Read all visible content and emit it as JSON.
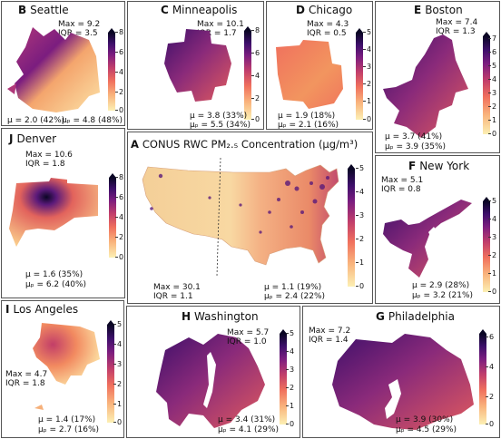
{
  "colorscale": [
    "#fcf0b4",
    "#f9b37c",
    "#f0705d",
    "#c13e6b",
    "#7b1d7f",
    "#3d0f6a",
    "#0a0624"
  ],
  "panels": {
    "B": {
      "letter": "B",
      "name": "Seattle",
      "max": "Max = 9.2",
      "iqr": "IQR = 3.5",
      "mu": "μ = 2.0 (42%)",
      "mup": "μₚ = 4.8 (48%)",
      "ticks": [
        "0",
        "2",
        "4",
        "6",
        "8"
      ]
    },
    "C": {
      "letter": "C",
      "name": "Minneapolis",
      "max": "Max = 10.1",
      "iqr": "IQR = 1.7",
      "mu": "μ = 3.8 (33%)",
      "mup": "μₚ = 5.5 (34%)",
      "ticks": [
        "0",
        "2",
        "4",
        "6",
        "8"
      ]
    },
    "D": {
      "letter": "D",
      "name": "Chicago",
      "max": "Max = 4.3",
      "iqr": "IQR = 0.5",
      "mu": "μ = 1.9 (18%)",
      "mup": "μₚ = 2.1 (16%)",
      "ticks": [
        "0",
        "1",
        "2",
        "3",
        "4",
        "5"
      ]
    },
    "E": {
      "letter": "E",
      "name": "Boston",
      "max": "Max = 7.4",
      "iqr": "IQR = 1.3",
      "mu": "μ = 3.7 (41%)",
      "mup": "μₚ = 3.9 (35%)",
      "ticks": [
        "0",
        "1",
        "2",
        "3",
        "4",
        "5",
        "6",
        "7"
      ]
    },
    "J": {
      "letter": "J",
      "name": "Denver",
      "max": "Max = 10.6",
      "iqr": "IQR = 1.8",
      "mu": "μ = 1.6 (35%)",
      "mup": "μₚ = 6.2 (40%)",
      "ticks": [
        "0",
        "2",
        "4",
        "6",
        "8"
      ]
    },
    "A": {
      "letter": "A",
      "name": "CONUS RWC PM₂.₅ Concentration (μg/m³)",
      "max": "Max = 30.1",
      "iqr": "IQR = 1.1",
      "mu": "μ = 1.1 (19%)",
      "mup": "μₚ = 2.4 (22%)",
      "ticks": [
        "0",
        "1",
        "2",
        "3",
        "4",
        "5"
      ]
    },
    "F": {
      "letter": "F",
      "name": "New York",
      "max": "Max = 5.1",
      "iqr": "IQR = 0.8",
      "mu": "μ = 2.9 (28%)",
      "mup": "μₚ = 3.2 (21%)",
      "ticks": [
        "0",
        "1",
        "2",
        "3",
        "4",
        "5"
      ]
    },
    "I": {
      "letter": "I",
      "name": "Los Angeles",
      "max": "Max = 4.7",
      "iqr": "IQR = 1.8",
      "mu": "μ = 1.4 (17%)",
      "mup": "μₚ = 2.7 (16%)",
      "ticks": [
        "0",
        "1",
        "2",
        "3",
        "4",
        "5"
      ]
    },
    "H": {
      "letter": "H",
      "name": "Washington",
      "max": "Max = 5.7",
      "iqr": "IQR = 1.0",
      "mu": "μ = 3.4 (31%)",
      "mup": "μₚ = 4.1 (29%)",
      "ticks": [
        "0",
        "1",
        "2",
        "3",
        "4",
        "5"
      ]
    },
    "G": {
      "letter": "G",
      "name": "Philadelphia",
      "max": "Max = 7.2",
      "iqr": "IQR = 1.4",
      "mu": "μ = 3.9 (30%)",
      "mup": "μₚ = 4.5 (29%)",
      "ticks": [
        "0",
        "2",
        "4",
        "6"
      ]
    }
  }
}
